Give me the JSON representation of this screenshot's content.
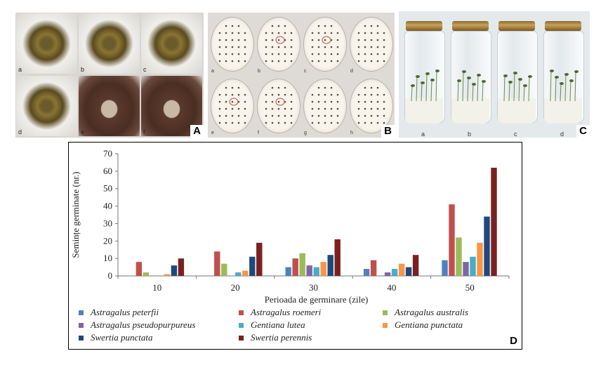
{
  "panels": {
    "a": {
      "label": "A",
      "photos": [
        {
          "sub": "a",
          "tone": "seeds-on-paper"
        },
        {
          "sub": "b",
          "tone": "seeds-on-paper"
        },
        {
          "sub": "c",
          "tone": "seeds-on-paper"
        },
        {
          "sub": "d",
          "tone": "seeds-on-paper"
        },
        {
          "sub": "e",
          "tone": "seeds-in-bag"
        },
        {
          "sub": "f",
          "tone": "seeds-in-bag"
        }
      ]
    },
    "b": {
      "label": "B",
      "dishes": [
        {
          "sub": "a",
          "marked": false
        },
        {
          "sub": "b",
          "marked": true
        },
        {
          "sub": "c",
          "marked": true
        },
        {
          "sub": "d",
          "marked": false
        },
        {
          "sub": "e",
          "marked": true
        },
        {
          "sub": "f",
          "marked": true
        },
        {
          "sub": "g",
          "marked": false
        },
        {
          "sub": "h",
          "marked": false
        }
      ]
    },
    "c": {
      "label": "C",
      "jars": [
        {
          "sub": "a"
        },
        {
          "sub": "b"
        },
        {
          "sub": "c"
        },
        {
          "sub": "d"
        }
      ]
    },
    "d": {
      "label": "D"
    }
  },
  "colors": {
    "Astragalus peterfii": "#4f81bd",
    "Astragalus roemeri": "#c0504d",
    "Astragalus australis": "#9bbb59",
    "Astragalus pseudopurpureus": "#8064a2",
    "Gentiana lutea": "#4bacc6",
    "Gentiana punctata": "#f79646",
    "Swertia punctata": "#1f497d",
    "Swertia perennis": "#7b2020"
  },
  "chart_data": {
    "type": "bar",
    "title": "",
    "xlabel": "Perioada de germinare (zile)",
    "ylabel": "Semințe germinate (nr.)",
    "ylim": [
      0,
      70
    ],
    "yticks": [
      0,
      10,
      20,
      30,
      40,
      50,
      60,
      70
    ],
    "categories": [
      "10",
      "20",
      "30",
      "40",
      "50"
    ],
    "series": [
      {
        "name": "Astragalus peterfii",
        "values": [
          0,
          0,
          5,
          4,
          9
        ]
      },
      {
        "name": "Astragalus roemeri",
        "values": [
          8,
          14,
          10,
          9,
          41
        ]
      },
      {
        "name": "Astragalus australis",
        "values": [
          2,
          7,
          13,
          0,
          22
        ]
      },
      {
        "name": "Astragalus pseudopurpureus",
        "values": [
          0,
          0,
          6,
          2,
          8
        ]
      },
      {
        "name": "Gentiana lutea",
        "values": [
          0,
          2,
          5,
          4,
          11
        ]
      },
      {
        "name": "Gentiana punctata",
        "values": [
          1,
          3,
          8,
          7,
          19
        ]
      },
      {
        "name": "Swertia punctata",
        "values": [
          6,
          11,
          12,
          5,
          34
        ]
      },
      {
        "name": "Swertia perennis",
        "values": [
          10,
          19,
          21,
          12,
          62
        ]
      }
    ],
    "legend": {
      "placement": "bottom",
      "columns": 3
    }
  }
}
